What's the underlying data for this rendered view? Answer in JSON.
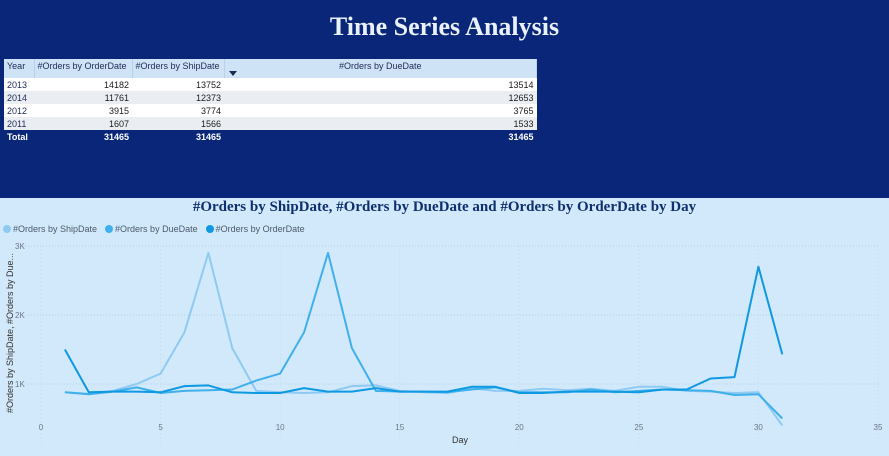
{
  "title": "Time Series Analysis",
  "table": {
    "columns": [
      "Year",
      "#Orders by OrderDate",
      "#Orders by ShipDate",
      "#Orders by DueDate"
    ],
    "rows": [
      [
        "2013",
        "14182",
        "13752",
        "13514"
      ],
      [
        "2014",
        "11761",
        "12373",
        "12653"
      ],
      [
        "2012",
        "3915",
        "3774",
        "3765"
      ],
      [
        "2011",
        "1607",
        "1566",
        "1533"
      ]
    ],
    "total": [
      "Total",
      "31465",
      "31465",
      "31465"
    ]
  },
  "chart_data": {
    "type": "line",
    "title": "#Orders by ShipDate, #Orders by DueDate and #Orders by OrderDate by Day",
    "xlabel": "Day",
    "ylabel": "#Orders by ShipDate, #Orders by Due...",
    "xlim": [
      0,
      35
    ],
    "ylim": [
      0,
      3000
    ],
    "x_ticks": [
      "0",
      "5",
      "10",
      "15",
      "20",
      "25",
      "30",
      "35"
    ],
    "y_ticks": [
      "1K",
      "2K",
      "3K"
    ],
    "legend_position": "top-left",
    "grid": true,
    "x": [
      1,
      2,
      3,
      4,
      5,
      6,
      7,
      8,
      9,
      10,
      11,
      12,
      13,
      14,
      15,
      16,
      17,
      18,
      19,
      20,
      21,
      22,
      23,
      24,
      25,
      26,
      27,
      28,
      29,
      30,
      31
    ],
    "series": [
      {
        "name": "#Orders by ShipDate",
        "color": "#8fcaf2",
        "values": [
          880,
          860,
          900,
          1000,
          1150,
          1750,
          2900,
          1520,
          900,
          880,
          870,
          880,
          970,
          980,
          900,
          880,
          870,
          940,
          900,
          900,
          930,
          910,
          930,
          900,
          960,
          960,
          900,
          890,
          870,
          880,
          400
        ]
      },
      {
        "name": "#Orders by DueDate",
        "color": "#3fb0eb",
        "values": [
          880,
          850,
          890,
          950,
          870,
          900,
          910,
          920,
          1050,
          1150,
          1750,
          2900,
          1520,
          900,
          890,
          890,
          880,
          920,
          950,
          880,
          880,
          880,
          920,
          880,
          900,
          920,
          910,
          900,
          840,
          850,
          500
        ]
      },
      {
        "name": "#Orders by OrderDate",
        "color": "#0e99e2",
        "values": [
          1500,
          880,
          890,
          890,
          880,
          970,
          980,
          880,
          870,
          870,
          940,
          890,
          890,
          940,
          890,
          890,
          890,
          960,
          960,
          870,
          870,
          890,
          890,
          890,
          880,
          920,
          920,
          1080,
          1100,
          2700,
          1430
        ]
      }
    ]
  }
}
